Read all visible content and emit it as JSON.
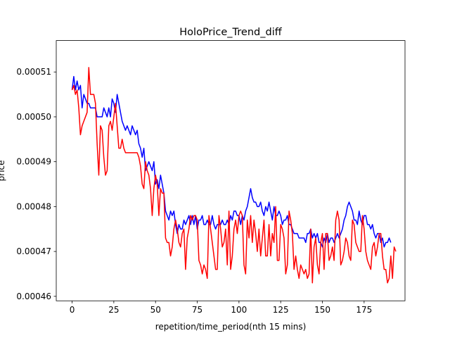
{
  "chart_data": {
    "type": "line",
    "title": "HoloPrice_Trend_diff",
    "xlabel": "repetition/time_period(nth 15 mins)",
    "ylabel": "price",
    "xlim": [
      -9.5,
      199.5
    ],
    "ylim": [
      0.000459,
      0.000517
    ],
    "grid": false,
    "x_ticks": [
      0,
      25,
      50,
      75,
      100,
      125,
      150,
      175
    ],
    "y_ticks": [
      0.00046,
      0.00047,
      0.00048,
      0.00049,
      0.0005,
      0.00051
    ],
    "x_tick_labels": [
      "0",
      "25",
      "50",
      "75",
      "100",
      "125",
      "150",
      "175"
    ],
    "y_tick_labels": [
      "0.00046",
      "0.00047",
      "0.00048",
      "0.00049",
      "0.00050",
      "0.00051"
    ],
    "series": [
      {
        "color": "#0000ff",
        "values": [
          0.000506,
          0.000509,
          0.000506,
          0.000508,
          0.000506,
          0.000507,
          0.000502,
          0.000505,
          0.000504,
          0.000503,
          0.000503,
          0.000502,
          0.000502,
          0.000502,
          0.000502,
          0.0005,
          0.0005,
          0.0005,
          0.0005,
          0.000502,
          0.000501,
          0.0005,
          0.000502,
          0.0005,
          0.000504,
          0.000503,
          0.000501,
          0.000505,
          0.000503,
          0.000501,
          0.000499,
          0.000498,
          0.000497,
          0.000498,
          0.000497,
          0.000496,
          0.000498,
          0.000497,
          0.000496,
          0.000497,
          0.000494,
          0.000493,
          0.000491,
          0.000493,
          0.000488,
          0.000489,
          0.00049,
          0.000489,
          0.000488,
          0.00049,
          0.000485,
          0.000486,
          0.000484,
          0.000487,
          0.000485,
          0.000483,
          0.000479,
          0.000478,
          0.000477,
          0.000479,
          0.000478,
          0.000479,
          0.000476,
          0.000474,
          0.000476,
          0.000475,
          0.000475,
          0.000477,
          0.000476,
          0.000477,
          0.000478,
          0.000476,
          0.000478,
          0.000476,
          0.000478,
          0.000475,
          0.000477,
          0.000477,
          0.000478,
          0.000476,
          0.000476,
          0.000477,
          0.000476,
          0.000476,
          0.000478,
          0.000476,
          0.000475,
          0.000476,
          0.000476,
          0.000476,
          0.000477,
          0.000476,
          0.000476,
          0.000477,
          0.000476,
          0.000478,
          0.000477,
          0.000479,
          0.000479,
          0.000478,
          0.000478,
          0.000476,
          0.000478,
          0.000477,
          0.000479,
          0.00048,
          0.000482,
          0.000484,
          0.000482,
          0.000481,
          0.000481,
          0.00048,
          0.00048,
          0.000481,
          0.000479,
          0.000478,
          0.00048,
          0.000479,
          0.000481,
          0.000479,
          0.000477,
          0.00048,
          0.000478,
          0.000478,
          0.000479,
          0.000478,
          0.000476,
          0.000477,
          0.000477,
          0.000478,
          0.000476,
          0.000476,
          0.000475,
          0.000474,
          0.000474,
          0.000474,
          0.000473,
          0.000473,
          0.000473,
          0.000473,
          0.000472,
          0.000474,
          0.000474,
          0.000475,
          0.000473,
          0.000474,
          0.000473,
          0.000474,
          0.000472,
          0.000472,
          0.000471,
          0.000473,
          0.000472,
          0.000474,
          0.000472,
          0.000473,
          0.000473,
          0.000472,
          0.000473,
          0.000474,
          0.000473,
          0.000474,
          0.000475,
          0.000477,
          0.000478,
          0.00048,
          0.000481,
          0.00048,
          0.000479,
          0.000477,
          0.000477,
          0.000476,
          0.000479,
          0.000477,
          0.000476,
          0.000478,
          0.000478,
          0.000476,
          0.000476,
          0.000475,
          0.000476,
          0.000474,
          0.000473,
          0.000474,
          0.000474,
          0.000472,
          0.000473,
          0.000471,
          0.000472,
          0.000472,
          0.000473,
          0.000472
        ]
      },
      {
        "color": "#ff0000",
        "values": [
          0.000506,
          0.000507,
          0.000505,
          0.000506,
          0.000502,
          0.000496,
          0.000498,
          0.000499,
          0.0005,
          0.000501,
          0.000511,
          0.000505,
          0.000505,
          0.000505,
          0.000503,
          0.000494,
          0.000487,
          0.000498,
          0.000497,
          0.000491,
          0.000487,
          0.000488,
          0.000498,
          0.000499,
          0.000497,
          0.0005,
          0.000503,
          0.000498,
          0.000493,
          0.000493,
          0.000495,
          0.000493,
          0.000492,
          0.000492,
          0.000492,
          0.000492,
          0.000492,
          0.000492,
          0.000492,
          0.000492,
          0.000491,
          0.000489,
          0.000485,
          0.000484,
          0.00049,
          0.000488,
          0.000487,
          0.000484,
          0.000478,
          0.000484,
          0.000487,
          0.000485,
          0.000478,
          0.000484,
          0.000483,
          0.000483,
          0.000473,
          0.000472,
          0.000472,
          0.000469,
          0.000471,
          0.000475,
          0.000477,
          0.000475,
          0.000472,
          0.000471,
          0.000474,
          0.000475,
          0.000466,
          0.000473,
          0.000475,
          0.000478,
          0.000477,
          0.000478,
          0.000478,
          0.000477,
          0.000468,
          0.000467,
          0.000465,
          0.000467,
          0.000466,
          0.000464,
          0.000478,
          0.000475,
          0.000472,
          0.000469,
          0.000466,
          0.000466,
          0.000478,
          0.000475,
          0.000471,
          0.000472,
          0.000475,
          0.000467,
          0.000479,
          0.000466,
          0.000469,
          0.000475,
          0.000477,
          0.000474,
          0.000478,
          0.000479,
          0.000478,
          0.000467,
          0.000465,
          0.000477,
          0.000473,
          0.000478,
          0.000472,
          0.000477,
          0.000474,
          0.00047,
          0.000475,
          0.000469,
          0.000473,
          0.000477,
          0.000469,
          0.000469,
          0.000476,
          0.000469,
          0.000474,
          0.000472,
          0.00048,
          0.000468,
          0.000468,
          0.000476,
          0.000475,
          0.000473,
          0.000465,
          0.000467,
          0.000479,
          0.000477,
          0.000474,
          0.000466,
          0.000469,
          0.000466,
          0.000464,
          0.000467,
          0.000466,
          0.000465,
          0.000466,
          0.000464,
          0.000465,
          0.000475,
          0.000463,
          0.000471,
          0.000473,
          0.000467,
          0.000465,
          0.000472,
          0.000474,
          0.000466,
          0.000474,
          0.000474,
          0.000468,
          0.000469,
          0.000471,
          0.000468,
          0.000477,
          0.000479,
          0.000477,
          0.000467,
          0.000468,
          0.00047,
          0.000473,
          0.000472,
          0.000469,
          0.000468,
          0.000477,
          0.000476,
          0.000472,
          0.000471,
          0.00047,
          0.00047,
          0.000478,
          0.000475,
          0.00047,
          0.000468,
          0.000467,
          0.000466,
          0.000471,
          0.000472,
          0.000469,
          0.000471,
          0.000474,
          0.000474,
          0.000469,
          0.000466,
          0.000466,
          0.000463,
          0.000464,
          0.000469,
          0.000464,
          0.000471,
          0.00047
        ]
      }
    ]
  }
}
